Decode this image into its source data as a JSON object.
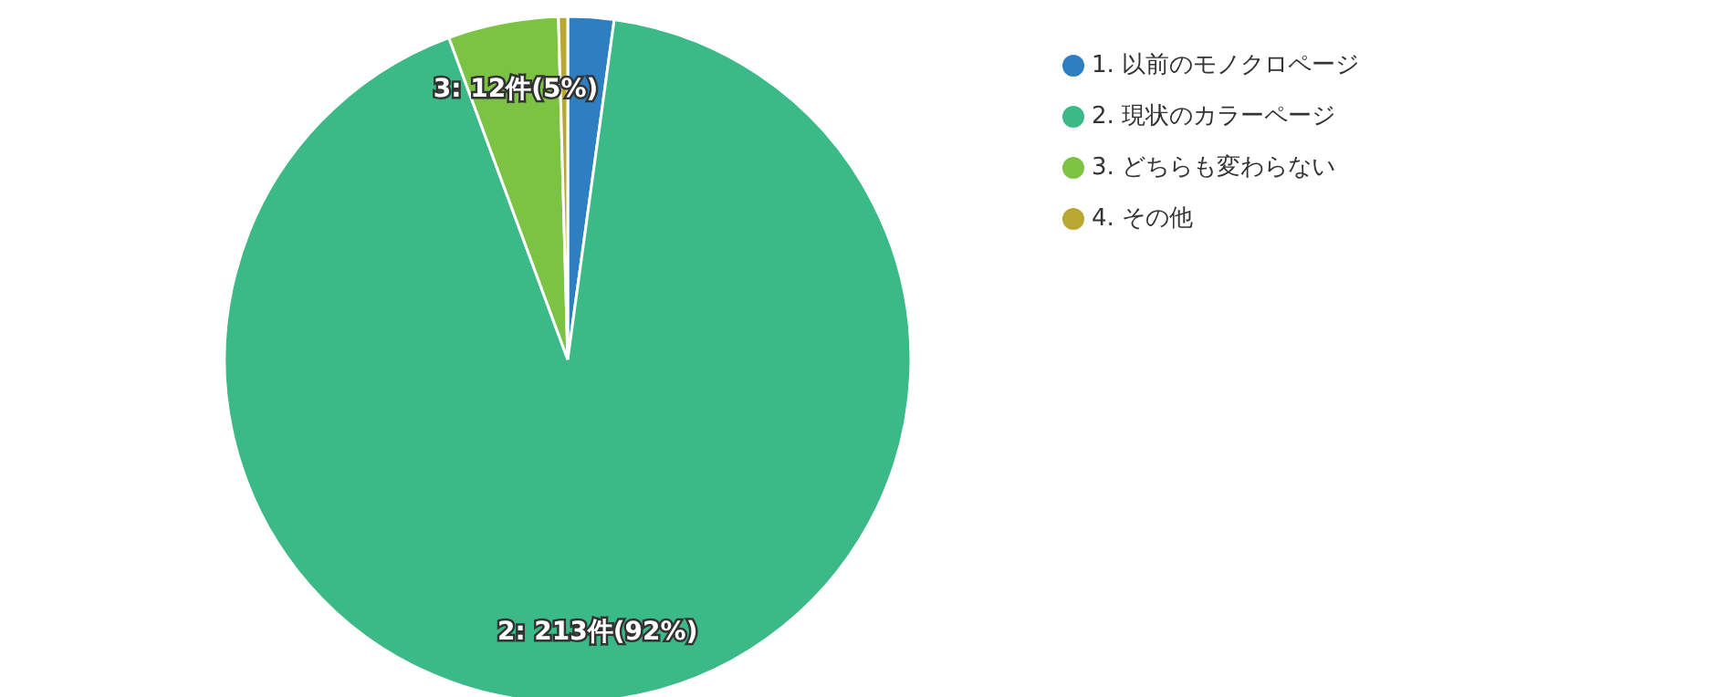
{
  "chart_data": {
    "type": "pie",
    "categories": [
      "1. 以前のモノクロページ",
      "2. 現状のカラーページ",
      "3. どちらも変わらない",
      "4. その他"
    ],
    "values": [
      5,
      213,
      12,
      1
    ],
    "colors": [
      "#2e7fc1",
      "#3bba87",
      "#7cc243",
      "#b8a832"
    ],
    "value_labels": [
      null,
      "2: 213件(92%)",
      "3: 12件(5%)",
      null
    ],
    "legend": "top right"
  }
}
